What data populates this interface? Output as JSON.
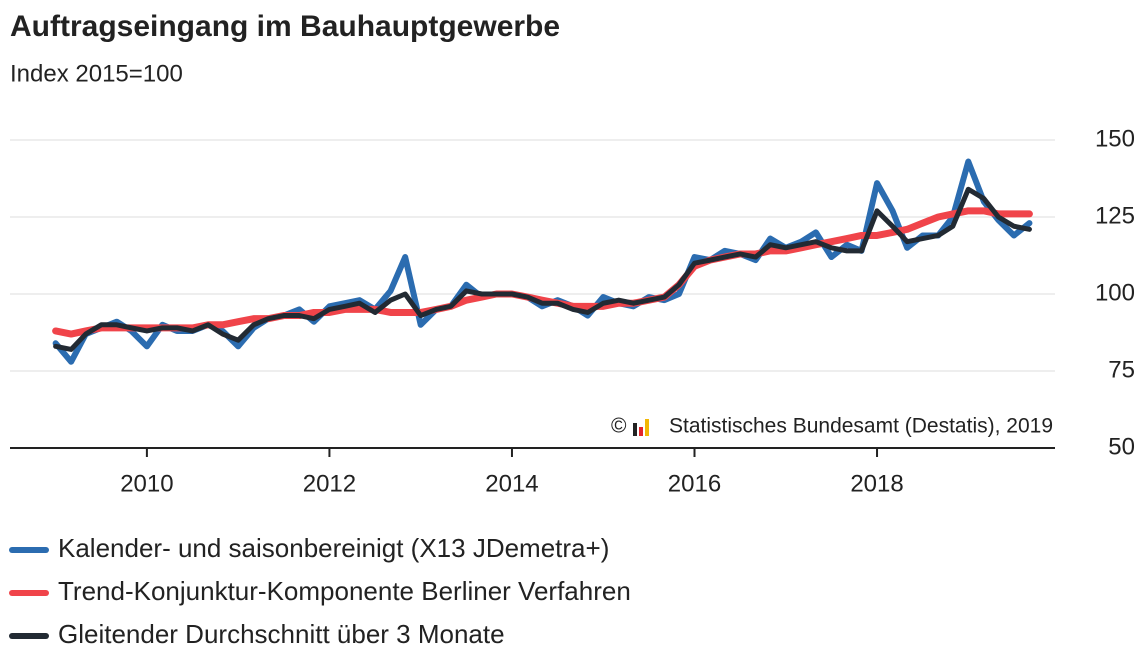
{
  "chart_data": {
    "type": "line",
    "title": "Auftragseingang im Bauhauptgewerbe",
    "subtitle": "Index 2015=100",
    "copyright": "©",
    "source": "Statistisches Bundesamt (Destatis), 2019",
    "x": [
      2009,
      2009.17,
      2009.33,
      2009.5,
      2009.67,
      2009.83,
      2010,
      2010.17,
      2010.33,
      2010.5,
      2010.67,
      2010.83,
      2011,
      2011.17,
      2011.33,
      2011.5,
      2011.67,
      2011.83,
      2012,
      2012.17,
      2012.33,
      2012.5,
      2012.67,
      2012.83,
      2013,
      2013.17,
      2013.33,
      2013.5,
      2013.67,
      2013.83,
      2014,
      2014.17,
      2014.33,
      2014.5,
      2014.67,
      2014.83,
      2015,
      2015.17,
      2015.33,
      2015.5,
      2015.67,
      2015.83,
      2016,
      2016.17,
      2016.33,
      2016.5,
      2016.67,
      2016.83,
      2017,
      2017.17,
      2017.33,
      2017.5,
      2017.67,
      2017.83,
      2018,
      2018.17,
      2018.33,
      2018.5,
      2018.67,
      2018.83,
      2019,
      2019.17,
      2019.33,
      2019.5,
      2019.67
    ],
    "series": [
      {
        "name": "Kalender- und saisonbereinigt (X13 JDemetra+)",
        "color": "#2b6cb0",
        "values": [
          84,
          78,
          87,
          89,
          91,
          88,
          83,
          90,
          88,
          88,
          90,
          88,
          83,
          89,
          92,
          93,
          95,
          91,
          96,
          97,
          98,
          95,
          101,
          112,
          90,
          95,
          96,
          103,
          99,
          100,
          100,
          99,
          96,
          98,
          96,
          93,
          99,
          97,
          96,
          99,
          98,
          100,
          112,
          111,
          114,
          113,
          111,
          118,
          115,
          117,
          120,
          112,
          116,
          114,
          136,
          127,
          115,
          119,
          119,
          125,
          143,
          130,
          124,
          119,
          123
        ]
      },
      {
        "name": "Trend-Konjunktur-Komponente Berliner Verfahren",
        "color": "#f0444a",
        "values": [
          88,
          87,
          88,
          89,
          89,
          89,
          89,
          89,
          89,
          89,
          90,
          90,
          91,
          92,
          92,
          93,
          93,
          94,
          94,
          95,
          95,
          95,
          94,
          94,
          94,
          95,
          96,
          98,
          99,
          100,
          100,
          99,
          98,
          97,
          96,
          96,
          96,
          97,
          97,
          98,
          99,
          103,
          109,
          111,
          112,
          113,
          113,
          114,
          114,
          115,
          116,
          117,
          118,
          119,
          119,
          120,
          121,
          123,
          125,
          126,
          127,
          127,
          126,
          126,
          126
        ]
      },
      {
        "name": "Gleitender Durchschnitt über 3 Monate",
        "color": "#222a33",
        "values": [
          83,
          82,
          87,
          90,
          90,
          89,
          88,
          89,
          89,
          88,
          90,
          87,
          85,
          90,
          92,
          93,
          93,
          92,
          95,
          96,
          97,
          94,
          98,
          100,
          93,
          95,
          96,
          101,
          100,
          100,
          100,
          99,
          97,
          97,
          95,
          94,
          97,
          98,
          97,
          98,
          99,
          103,
          110,
          111,
          112,
          113,
          112,
          116,
          115,
          116,
          117,
          115,
          114,
          114,
          127,
          122,
          117,
          118,
          119,
          122,
          134,
          131,
          125,
          122,
          121
        ]
      }
    ],
    "xlim": [
      2008.5,
      2019.95
    ],
    "xticks": [
      2010,
      2012,
      2014,
      2016,
      2018
    ],
    "ylim": [
      50,
      150
    ],
    "yticks": [
      50,
      75,
      100,
      125,
      150
    ],
    "grid": true
  }
}
